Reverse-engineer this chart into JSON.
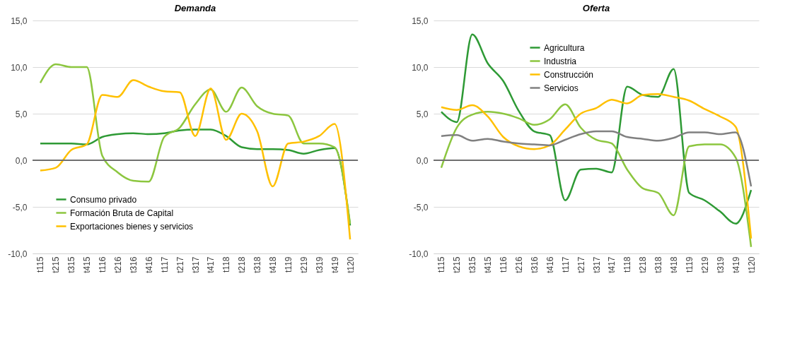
{
  "chart_data": [
    {
      "type": "line",
      "title": "Demanda",
      "categories": [
        "t115",
        "t215",
        "t315",
        "t415",
        "t116",
        "t216",
        "t316",
        "t416",
        "t117",
        "t217",
        "t317",
        "t417",
        "t118",
        "t218",
        "t318",
        "t418",
        "t119",
        "t219",
        "t319",
        "t419",
        "t120"
      ],
      "series": [
        {
          "name": "Consumo privado",
          "color": "#2e9a35",
          "values": [
            1.8,
            1.8,
            1.8,
            1.7,
            2.5,
            2.8,
            2.9,
            2.8,
            2.9,
            3.2,
            3.3,
            3.3,
            2.6,
            1.4,
            1.2,
            1.2,
            1.1,
            0.7,
            1.1,
            1.3,
            -7.0
          ]
        },
        {
          "name": "Formación Bruta de Capital",
          "color": "#8cc63f",
          "values": [
            8.3,
            10.3,
            10.0,
            10.0,
            0.5,
            -1.3,
            -2.2,
            -2.3,
            2.5,
            3.5,
            6.0,
            7.6,
            5.2,
            7.8,
            5.8,
            5.0,
            4.8,
            1.8,
            1.8,
            1.4,
            -6.8
          ]
        },
        {
          "name": "Exportaciones bienes y servicios",
          "color": "#ffc000",
          "values": [
            -1.1,
            -0.8,
            1.1,
            1.7,
            7.0,
            6.8,
            8.6,
            7.9,
            7.4,
            7.3,
            2.6,
            7.7,
            2.2,
            5.0,
            3.1,
            -2.8,
            1.8,
            2.0,
            2.6,
            3.9,
            -8.5
          ]
        }
      ],
      "ylim": [
        -10,
        15
      ],
      "yticks": [
        {
          "value": -10,
          "label": "-10,0"
        },
        {
          "value": -5,
          "label": "-5,0"
        },
        {
          "value": 0,
          "label": "0,0"
        },
        {
          "value": 5,
          "label": "5,0"
        },
        {
          "value": 10,
          "label": "10,0"
        },
        {
          "value": 15,
          "label": "15,0"
        }
      ],
      "grid": "y",
      "legend": "bottom left",
      "line_style": "solid",
      "ref_lines": [
        {
          "axis": "y",
          "value": 0,
          "color": "#707070"
        }
      ]
    },
    {
      "type": "line",
      "title": "Oferta",
      "categories": [
        "t115",
        "t215",
        "t315",
        "t415",
        "t116",
        "t216",
        "t316",
        "t416",
        "t117",
        "t217",
        "t317",
        "t417",
        "t118",
        "t218",
        "t318",
        "t418",
        "t119",
        "t219",
        "t319",
        "t419",
        "t120"
      ],
      "series": [
        {
          "name": "Agricultura",
          "color": "#2e9a35",
          "values": [
            5.2,
            4.1,
            13.5,
            10.4,
            8.5,
            5.3,
            3.1,
            2.7,
            -4.3,
            -1.0,
            -0.9,
            -1.3,
            7.9,
            7.0,
            6.8,
            9.8,
            -3.5,
            -4.3,
            -5.5,
            -6.8,
            -3.2
          ]
        },
        {
          "name": "Industria",
          "color": "#8cc63f",
          "values": [
            -0.8,
            3.5,
            4.9,
            5.2,
            5.0,
            4.5,
            3.8,
            4.4,
            6.0,
            3.5,
            2.2,
            1.8,
            -1.0,
            -3.0,
            -3.5,
            -5.9,
            1.5,
            1.7,
            1.7,
            0.3,
            -9.3
          ]
        },
        {
          "name": "Construcción",
          "color": "#ffc000",
          "values": [
            5.7,
            5.4,
            5.9,
            4.7,
            2.5,
            1.5,
            1.2,
            1.6,
            3.3,
            5.0,
            5.6,
            6.5,
            6.1,
            7.0,
            7.1,
            6.8,
            6.4,
            5.5,
            4.7,
            3.6,
            -8.4
          ]
        },
        {
          "name": "Servicios",
          "color": "#808080",
          "values": [
            2.6,
            2.7,
            2.1,
            2.3,
            2.0,
            1.8,
            1.7,
            1.6,
            2.2,
            2.8,
            3.1,
            3.1,
            2.5,
            2.3,
            2.1,
            2.4,
            3.0,
            3.0,
            2.8,
            3.0,
            -2.8
          ]
        }
      ],
      "ylim": [
        -10,
        15
      ],
      "yticks": [
        {
          "value": -10,
          "label": "-10,0"
        },
        {
          "value": -5,
          "label": "-5,0"
        },
        {
          "value": 0,
          "label": "0,0"
        },
        {
          "value": 5,
          "label": "5,0"
        },
        {
          "value": 10,
          "label": "10,0"
        },
        {
          "value": 15,
          "label": "15,0"
        }
      ],
      "grid": "y",
      "legend": "top left",
      "line_style": "solid",
      "ref_lines": [
        {
          "axis": "y",
          "value": 0,
          "color": "#707070"
        }
      ]
    }
  ]
}
